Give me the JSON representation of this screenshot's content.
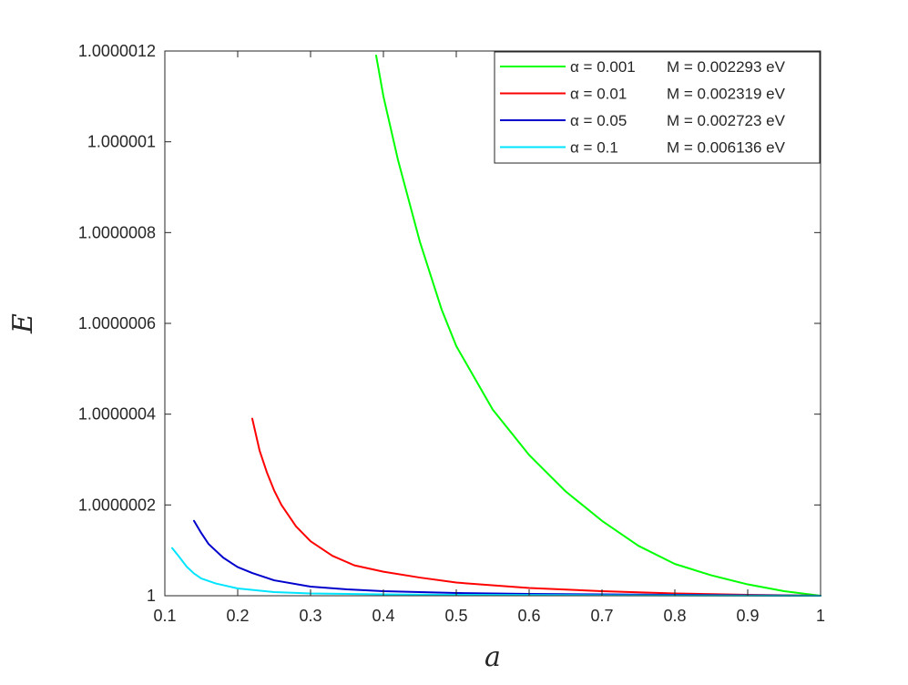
{
  "chart_data": {
    "type": "line",
    "title": "",
    "xlabel": "a",
    "ylabel": "E",
    "xlim": [
      0.1,
      1.0
    ],
    "ylim": [
      1.0,
      1.0000012
    ],
    "x_ticks": [
      0.1,
      0.2,
      0.3,
      0.4,
      0.5,
      0.6,
      0.7,
      0.8,
      0.9,
      1.0
    ],
    "x_tick_labels": [
      "0.1",
      "0.2",
      "0.3",
      "0.4",
      "0.5",
      "0.6",
      "0.7",
      "0.8",
      "0.9",
      "1"
    ],
    "y_ticks": [
      1.0,
      1.0000002,
      1.0000004,
      1.0000006,
      1.0000008,
      1.000001,
      1.0000012
    ],
    "y_tick_labels": [
      "1",
      "1.0000002",
      "1.0000004",
      "1.0000006",
      "1.0000008",
      "1.000001",
      "1.0000012"
    ],
    "grid": false,
    "legend_position": "top-right",
    "series": [
      {
        "name": "α = 0.001   M = 0.002293 eV",
        "alpha_label": "α = 0.001",
        "mass_label": "M = 0.002293 eV",
        "color": "#00ff00",
        "x": [
          0.39,
          0.4,
          0.42,
          0.45,
          0.48,
          0.5,
          0.55,
          0.6,
          0.65,
          0.7,
          0.75,
          0.8,
          0.85,
          0.9,
          0.95,
          1.0
        ],
        "y": [
          1.00000119,
          1.0000011,
          1.00000096,
          1.00000078,
          1.00000063,
          1.00000055,
          1.00000041,
          1.00000031,
          1.00000023,
          1.000000165,
          1.00000011,
          1.00000007,
          1.000000045,
          1.000000025,
          1.00000001,
          1.0
        ]
      },
      {
        "name": "α = 0.01   M = 0.002319 eV",
        "alpha_label": "α = 0.01",
        "mass_label": "M = 0.002319 eV",
        "color": "#ff0000",
        "x": [
          0.22,
          0.23,
          0.24,
          0.25,
          0.26,
          0.28,
          0.3,
          0.33,
          0.36,
          0.4,
          0.45,
          0.5,
          0.6,
          0.7,
          0.8,
          0.9,
          1.0
        ],
        "y": [
          1.00000039,
          1.00000032,
          1.000000272,
          1.000000232,
          1.0000002,
          1.000000153,
          1.00000012,
          1.000000088,
          1.000000067,
          1.000000053,
          1.00000004,
          1.000000029,
          1.000000017,
          1.00000001,
          1.000000005,
          1.000000002,
          1.0
        ]
      },
      {
        "name": "α = 0.05   M = 0.002723 eV",
        "alpha_label": "α = 0.05",
        "mass_label": "M = 0.002723 eV",
        "color": "#0000cc",
        "x": [
          0.14,
          0.15,
          0.16,
          0.18,
          0.2,
          0.22,
          0.25,
          0.3,
          0.35,
          0.4,
          0.5,
          0.6,
          0.7,
          0.8,
          0.9,
          1.0
        ],
        "y": [
          1.000000165,
          1.000000138,
          1.000000114,
          1.000000084,
          1.000000063,
          1.00000005,
          1.000000034,
          1.00000002,
          1.000000014,
          1.00000001,
          1.000000006,
          1.000000004,
          1.000000003,
          1.000000002,
          1.000000001,
          1.0
        ]
      },
      {
        "name": "α = 0.1   M = 0.006136 eV",
        "alpha_label": "α = 0.1",
        "mass_label": "M = 0.006136 eV",
        "color": "#00e5ff",
        "x": [
          0.11,
          0.12,
          0.13,
          0.14,
          0.15,
          0.17,
          0.2,
          0.25,
          0.3,
          0.4,
          0.5,
          0.7,
          1.0
        ],
        "y": [
          1.000000105,
          1.000000085,
          1.000000064,
          1.000000049,
          1.000000038,
          1.000000027,
          1.000000016,
          1.000000008,
          1.000000005,
          1.000000003,
          1.000000002,
          1.000000001,
          1.0
        ]
      }
    ]
  }
}
